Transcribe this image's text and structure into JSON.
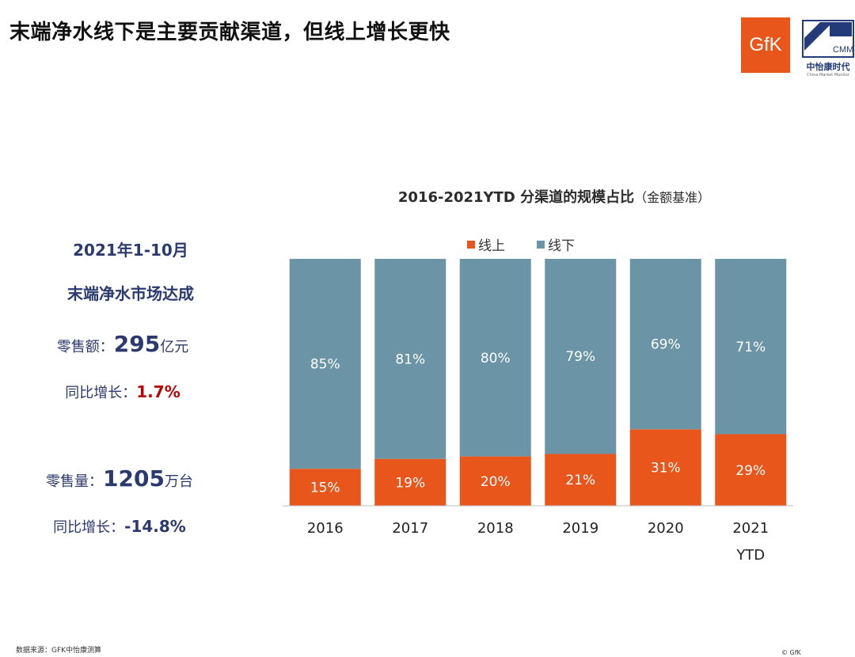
{
  "header": {
    "title": "末端净水线下是主要贡献渠道，但线上增长更快"
  },
  "logos": {
    "gfk": "GfK",
    "cmm_abbr": "CMM",
    "cmm_name": "中怡康时代",
    "cmm_sub": "China Market Monitor"
  },
  "summary": {
    "period": "2021年1-10月",
    "market": "末端净水市场达成",
    "sales_label": "零售额：",
    "sales_value": "295",
    "sales_unit": "亿元",
    "sales_growth_label": "同比增长：",
    "sales_growth": "1.7%",
    "volume_label": "零售量：",
    "volume_value": "1205",
    "volume_unit": "万台",
    "volume_growth_label": "同比增长：",
    "volume_growth": "-14.8%"
  },
  "chart_data": {
    "type": "bar",
    "stacked": true,
    "title": "2016-2021YTD 分渠道的规模占比",
    "title_note": "（金额基准）",
    "categories": [
      "2016",
      "2017",
      "2018",
      "2019",
      "2020",
      "2021\nYTD"
    ],
    "series": [
      {
        "name": "线上",
        "color": "#e8561b",
        "values": [
          15,
          19,
          20,
          21,
          31,
          29
        ]
      },
      {
        "name": "线下",
        "color": "#6b95a6",
        "values": [
          85,
          81,
          80,
          79,
          69,
          71
        ]
      }
    ],
    "value_format": "%",
    "ylim": [
      0,
      100
    ],
    "legend": "top",
    "grid": false
  },
  "footer": {
    "source": "数据来源：GFK中怡康测算",
    "copyright": "© GfK"
  }
}
